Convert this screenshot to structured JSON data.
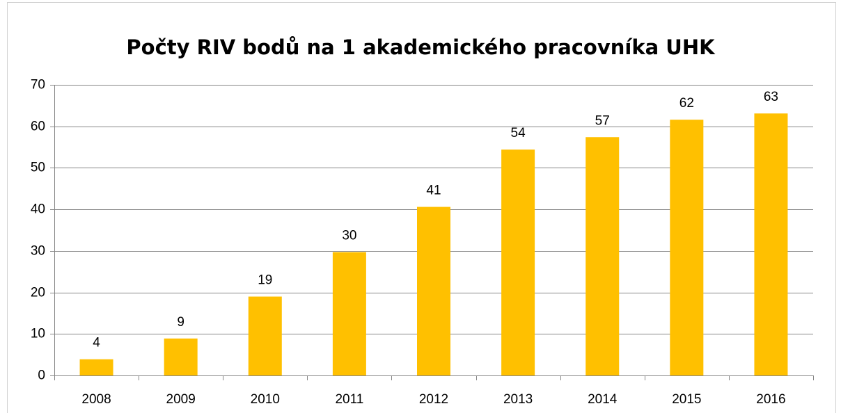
{
  "chart_data": {
    "type": "bar",
    "title": "Počty RIV bodů na 1 akademického pracovníka UHK",
    "categories": [
      "2008",
      "2009",
      "2010",
      "2011",
      "2012",
      "2013",
      "2014",
      "2015",
      "2016"
    ],
    "values": [
      3.9,
      8.9,
      19.0,
      29.7,
      40.6,
      54.4,
      57.4,
      61.6,
      63.1
    ],
    "value_labels": [
      "4",
      "9",
      "19",
      "30",
      "41",
      "54",
      "57",
      "62",
      "63"
    ],
    "color": "#ffc000",
    "ylim": [
      0,
      70
    ],
    "yticks": [
      0,
      10,
      20,
      30,
      40,
      50,
      60,
      70
    ],
    "grid": true
  }
}
